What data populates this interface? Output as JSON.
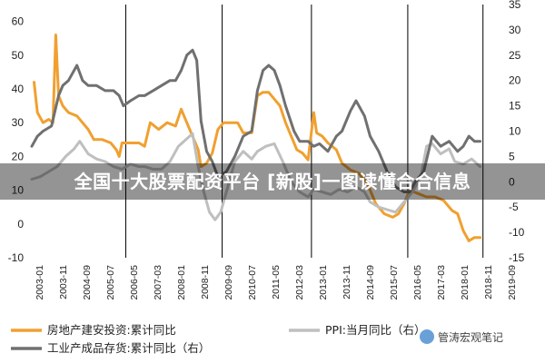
{
  "chart_data": {
    "type": "line",
    "left_axis": {
      "ylim": [
        -10,
        65
      ],
      "ticks": [
        -10,
        0,
        10,
        20,
        30,
        40,
        50,
        60
      ]
    },
    "right_axis": {
      "ylim": [
        -15,
        35
      ],
      "ticks": [
        -15,
        -10,
        -5,
        0,
        5,
        10,
        15,
        20,
        25,
        30,
        35
      ]
    },
    "x_ticks": [
      "2003-01",
      "2003-11",
      "2004-09",
      "2005-07",
      "2006-05",
      "2007-03",
      "2008-01",
      "2008-11",
      "2009-09",
      "2010-07",
      "2011-05",
      "2012-03",
      "2013-01",
      "2013-11",
      "2014-09",
      "2015-07",
      "2016-05",
      "2017-03",
      "2018-01",
      "2018-11",
      "2019-09"
    ],
    "x_range": [
      2003.0,
      2019.75
    ],
    "vlines": [
      2006.333,
      2009.75,
      2012.917,
      2016.333,
      2019.0
    ],
    "grid": false,
    "legend_position": "bottom",
    "series": [
      {
        "name": "房地产建安投资:累计同比",
        "axis": "left",
        "color": "#f0a030",
        "points": [
          [
            2003.08,
            42
          ],
          [
            2003.2,
            33
          ],
          [
            2003.4,
            30
          ],
          [
            2003.6,
            31
          ],
          [
            2003.75,
            30
          ],
          [
            2003.85,
            56
          ],
          [
            2003.95,
            38
          ],
          [
            2004.1,
            35
          ],
          [
            2004.3,
            33
          ],
          [
            2004.6,
            32
          ],
          [
            2004.8,
            30
          ],
          [
            2005.0,
            28
          ],
          [
            2005.2,
            25
          ],
          [
            2005.5,
            25
          ],
          [
            2005.8,
            24
          ],
          [
            2006.0,
            22
          ],
          [
            2006.1,
            20
          ],
          [
            2006.2,
            24
          ],
          [
            2006.5,
            24
          ],
          [
            2006.8,
            24
          ],
          [
            2007.0,
            23
          ],
          [
            2007.2,
            30
          ],
          [
            2007.5,
            28
          ],
          [
            2007.8,
            30
          ],
          [
            2008.1,
            29
          ],
          [
            2008.3,
            34
          ],
          [
            2008.5,
            30
          ],
          [
            2008.7,
            26
          ],
          [
            2008.9,
            22
          ],
          [
            2009.0,
            17
          ],
          [
            2009.2,
            18
          ],
          [
            2009.4,
            21
          ],
          [
            2009.6,
            28
          ],
          [
            2009.8,
            30
          ],
          [
            2010.0,
            30
          ],
          [
            2010.3,
            30
          ],
          [
            2010.5,
            27
          ],
          [
            2010.8,
            27
          ],
          [
            2011.0,
            38
          ],
          [
            2011.2,
            39
          ],
          [
            2011.4,
            39
          ],
          [
            2011.6,
            37
          ],
          [
            2011.8,
            35
          ],
          [
            2012.0,
            30
          ],
          [
            2012.2,
            26
          ],
          [
            2012.4,
            22
          ],
          [
            2012.6,
            21
          ],
          [
            2012.8,
            19
          ],
          [
            2013.0,
            33
          ],
          [
            2013.1,
            27
          ],
          [
            2013.3,
            26
          ],
          [
            2013.5,
            24
          ],
          [
            2013.8,
            22
          ],
          [
            2014.0,
            18
          ],
          [
            2014.3,
            16
          ],
          [
            2014.6,
            15
          ],
          [
            2014.9,
            12
          ],
          [
            2015.2,
            6
          ],
          [
            2015.5,
            3
          ],
          [
            2015.8,
            2
          ],
          [
            2016.0,
            3
          ],
          [
            2016.2,
            6
          ],
          [
            2016.4,
            10
          ],
          [
            2016.7,
            9
          ],
          [
            2017.0,
            8
          ],
          [
            2017.3,
            8
          ],
          [
            2017.6,
            7
          ],
          [
            2017.9,
            4
          ],
          [
            2018.1,
            3
          ],
          [
            2018.3,
            -2
          ],
          [
            2018.5,
            -5
          ],
          [
            2018.7,
            -4
          ],
          [
            2018.9,
            -4
          ]
        ]
      },
      {
        "name": "PPI:当月同比（右）",
        "axis": "right",
        "color": "#bfbfbf",
        "points": [
          [
            2003.0,
            0.5
          ],
          [
            2003.3,
            1
          ],
          [
            2003.6,
            2
          ],
          [
            2003.9,
            3
          ],
          [
            2004.2,
            5
          ],
          [
            2004.5,
            6.5
          ],
          [
            2004.7,
            8
          ],
          [
            2005.0,
            5.5
          ],
          [
            2005.3,
            4.5
          ],
          [
            2005.6,
            4
          ],
          [
            2005.9,
            3
          ],
          [
            2006.2,
            2.5
          ],
          [
            2006.5,
            3.5
          ],
          [
            2006.8,
            3
          ],
          [
            2007.0,
            3
          ],
          [
            2007.3,
            2.5
          ],
          [
            2007.6,
            2.5
          ],
          [
            2007.9,
            4
          ],
          [
            2008.2,
            7
          ],
          [
            2008.5,
            8.5
          ],
          [
            2008.7,
            9.5
          ],
          [
            2008.9,
            3
          ],
          [
            2009.1,
            -2
          ],
          [
            2009.3,
            -6
          ],
          [
            2009.5,
            -7.5
          ],
          [
            2009.7,
            -6
          ],
          [
            2009.9,
            -2
          ],
          [
            2010.2,
            4
          ],
          [
            2010.5,
            6
          ],
          [
            2010.8,
            4.5
          ],
          [
            2011.0,
            6
          ],
          [
            2011.3,
            7
          ],
          [
            2011.6,
            7.5
          ],
          [
            2011.9,
            4
          ],
          [
            2012.2,
            0
          ],
          [
            2012.5,
            -2
          ],
          [
            2012.8,
            -3
          ],
          [
            2013.0,
            -1.5
          ],
          [
            2013.3,
            -2
          ],
          [
            2013.6,
            -2.5
          ],
          [
            2013.9,
            -1.5
          ],
          [
            2014.2,
            -2
          ],
          [
            2014.5,
            -1
          ],
          [
            2014.8,
            -2
          ],
          [
            2015.0,
            -4
          ],
          [
            2015.3,
            -5
          ],
          [
            2015.6,
            -5.5
          ],
          [
            2015.9,
            -6
          ],
          [
            2016.2,
            -4
          ],
          [
            2016.5,
            -2
          ],
          [
            2016.8,
            1
          ],
          [
            2017.0,
            7
          ],
          [
            2017.2,
            7.5
          ],
          [
            2017.5,
            5.5
          ],
          [
            2017.8,
            6.5
          ],
          [
            2018.0,
            4
          ],
          [
            2018.3,
            3.5
          ],
          [
            2018.6,
            4.5
          ],
          [
            2018.9,
            3
          ]
        ]
      },
      {
        "name": "工业产成品存货:累计同比（右）",
        "axis": "right",
        "color": "#707070",
        "points": [
          [
            2003.0,
            7
          ],
          [
            2003.2,
            9
          ],
          [
            2003.4,
            10
          ],
          [
            2003.7,
            11
          ],
          [
            2003.95,
            17
          ],
          [
            2004.1,
            19
          ],
          [
            2004.3,
            20
          ],
          [
            2004.6,
            23
          ],
          [
            2004.8,
            20
          ],
          [
            2005.0,
            19
          ],
          [
            2005.3,
            19
          ],
          [
            2005.6,
            18
          ],
          [
            2005.9,
            18
          ],
          [
            2006.1,
            17
          ],
          [
            2006.25,
            15
          ],
          [
            2006.5,
            16
          ],
          [
            2006.8,
            17
          ],
          [
            2007.0,
            17
          ],
          [
            2007.3,
            18
          ],
          [
            2007.6,
            19
          ],
          [
            2007.9,
            20
          ],
          [
            2008.1,
            20
          ],
          [
            2008.3,
            22
          ],
          [
            2008.5,
            25
          ],
          [
            2008.7,
            26
          ],
          [
            2008.85,
            24
          ],
          [
            2009.0,
            12
          ],
          [
            2009.2,
            6
          ],
          [
            2009.4,
            4
          ],
          [
            2009.6,
            1
          ],
          [
            2009.9,
            2
          ],
          [
            2010.2,
            5
          ],
          [
            2010.5,
            9
          ],
          [
            2010.8,
            10
          ],
          [
            2011.0,
            18
          ],
          [
            2011.2,
            22
          ],
          [
            2011.4,
            23
          ],
          [
            2011.6,
            22
          ],
          [
            2011.8,
            19
          ],
          [
            2012.0,
            15
          ],
          [
            2012.3,
            10
          ],
          [
            2012.5,
            8
          ],
          [
            2012.8,
            8
          ],
          [
            2013.0,
            7
          ],
          [
            2013.2,
            7.5
          ],
          [
            2013.5,
            6
          ],
          [
            2013.8,
            9
          ],
          [
            2014.0,
            10
          ],
          [
            2014.3,
            14
          ],
          [
            2014.5,
            16
          ],
          [
            2014.8,
            13
          ],
          [
            2015.0,
            9
          ],
          [
            2015.3,
            6
          ],
          [
            2015.6,
            2
          ],
          [
            2015.9,
            -1
          ],
          [
            2016.2,
            -2
          ],
          [
            2016.4,
            -2
          ],
          [
            2016.6,
            0
          ],
          [
            2016.9,
            2
          ],
          [
            2017.2,
            9
          ],
          [
            2017.5,
            7
          ],
          [
            2017.8,
            8
          ],
          [
            2018.1,
            6
          ],
          [
            2018.3,
            7
          ],
          [
            2018.5,
            9
          ],
          [
            2018.7,
            8
          ],
          [
            2018.9,
            8
          ]
        ]
      }
    ],
    "legend_items": [
      {
        "label": "房地产建安投资:累计同比",
        "color": "#f0a030"
      },
      {
        "label": "PPI:当月同比（右）",
        "color": "#bfbfbf"
      },
      {
        "label": "工业产成品存货:累计同比（右）",
        "color": "#707070"
      }
    ]
  },
  "banner": {
    "text": "全国十大股票配资平台 [新股]一图读懂合合信息"
  },
  "watermark": {
    "text": "管涛宏观笔记",
    "icon": "wechat-logo-icon"
  }
}
